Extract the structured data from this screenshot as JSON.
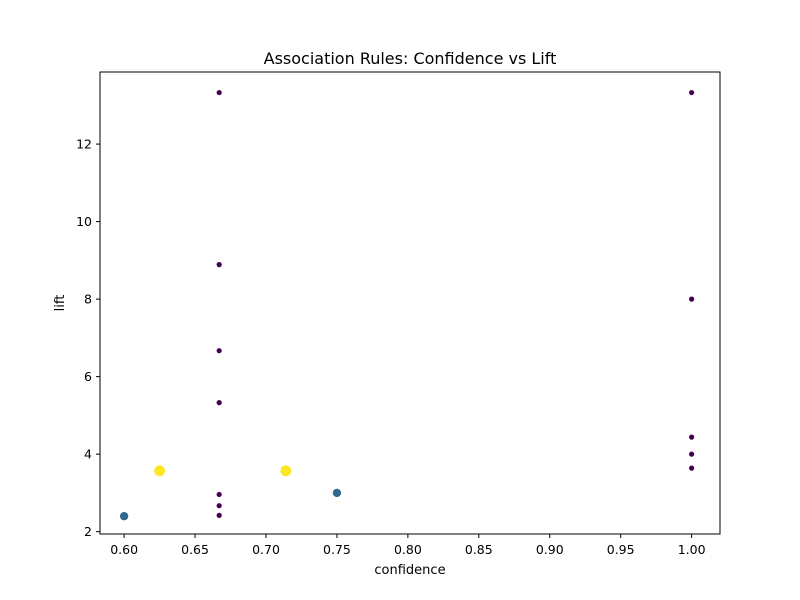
{
  "chart_data": {
    "type": "scatter",
    "title": "Association Rules: Confidence vs Lift",
    "xlabel": "confidence",
    "ylabel": "lift",
    "xlim": [
      0.583,
      1.02
    ],
    "ylim": [
      1.94,
      13.86
    ],
    "xticks": [
      0.6,
      0.65,
      0.7,
      0.75,
      0.8,
      0.85,
      0.9,
      0.95,
      1.0
    ],
    "xtick_labels": [
      "0.60",
      "0.65",
      "0.70",
      "0.75",
      "0.80",
      "0.85",
      "0.90",
      "0.95",
      "1.00"
    ],
    "yticks": [
      2,
      4,
      6,
      8,
      10,
      12
    ],
    "ytick_labels": [
      "2",
      "4",
      "6",
      "8",
      "10",
      "12"
    ],
    "grid": false,
    "color_map": {
      "small": "#440154",
      "medium": "#31688e",
      "large": "#fde725"
    },
    "points": [
      {
        "x": 0.667,
        "y": 13.33,
        "size": "small"
      },
      {
        "x": 0.667,
        "y": 8.89,
        "size": "small"
      },
      {
        "x": 0.667,
        "y": 6.67,
        "size": "small"
      },
      {
        "x": 0.667,
        "y": 5.33,
        "size": "small"
      },
      {
        "x": 0.667,
        "y": 2.96,
        "size": "small"
      },
      {
        "x": 0.667,
        "y": 2.67,
        "size": "small"
      },
      {
        "x": 0.667,
        "y": 2.42,
        "size": "small"
      },
      {
        "x": 1.0,
        "y": 13.33,
        "size": "small"
      },
      {
        "x": 1.0,
        "y": 8.0,
        "size": "small"
      },
      {
        "x": 1.0,
        "y": 4.44,
        "size": "small"
      },
      {
        "x": 1.0,
        "y": 4.0,
        "size": "small"
      },
      {
        "x": 1.0,
        "y": 3.64,
        "size": "small"
      },
      {
        "x": 0.6,
        "y": 2.4,
        "size": "medium"
      },
      {
        "x": 0.75,
        "y": 3.0,
        "size": "medium"
      },
      {
        "x": 0.625,
        "y": 3.57,
        "size": "large"
      },
      {
        "x": 0.714,
        "y": 3.57,
        "size": "large"
      }
    ]
  }
}
